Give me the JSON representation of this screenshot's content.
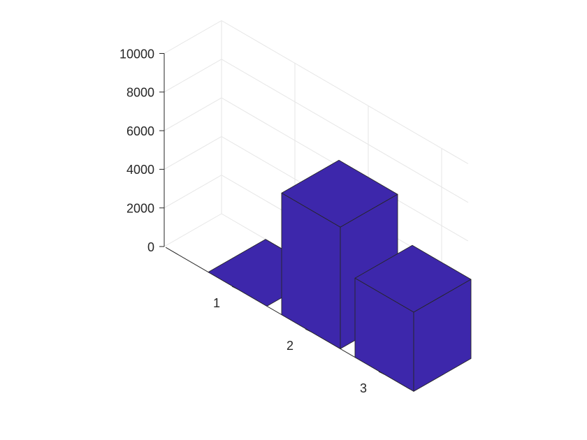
{
  "chart_data": {
    "type": "bar",
    "projection": "3d",
    "categories": [
      "1",
      "2",
      "3"
    ],
    "values": [
      0,
      6300,
      4100
    ],
    "ylim": [
      0,
      10000
    ],
    "yticks": [
      0,
      2000,
      4000,
      6000,
      8000,
      10000
    ],
    "ytick_labels": [
      "0",
      "2000",
      "4000",
      "6000",
      "8000",
      "10000"
    ],
    "title": "",
    "xlabel": "",
    "ylabel": "",
    "grid": true,
    "colors": {
      "bar_front": "#3d27ab",
      "bar_side": "#3d27ab",
      "bar_top": "#3d27ab",
      "edge": "#262626",
      "axis": "#262626",
      "grid": "#e6e6e6",
      "background": "#ffffff"
    }
  }
}
